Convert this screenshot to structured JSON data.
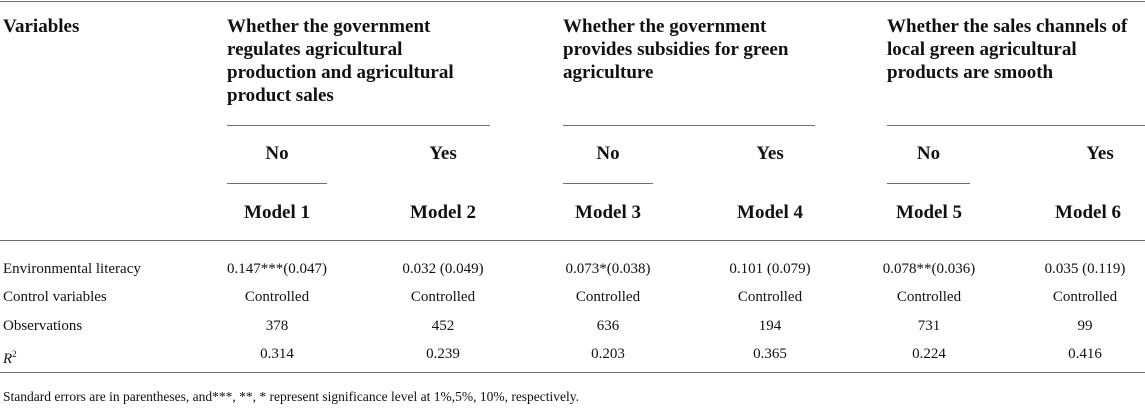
{
  "header": {
    "variables_label": "Variables",
    "groups": [
      {
        "title": "Whether the government regulates agricultural production and agricultural product sales",
        "no": "No",
        "yes": "Yes",
        "model_no": "Model 1",
        "model_yes": "Model 2"
      },
      {
        "title": "Whether the government provides subsidies for green agriculture",
        "no": "No",
        "yes": "Yes",
        "model_no": "Model 3",
        "model_yes": "Model 4"
      },
      {
        "title": "Whether the sales channels of local green agricultural products are smooth",
        "no": "No",
        "yes": "Yes",
        "model_no": "Model 5",
        "model_yes": "Model 6"
      }
    ]
  },
  "rows": [
    {
      "label": "Environmental literacy",
      "values": [
        "0.147***(0.047)",
        "0.032 (0.049)",
        "0.073*(0.038)",
        "0.101 (0.079)",
        "0.078**(0.036)",
        "0.035 (0.119)"
      ]
    },
    {
      "label": "Control variables",
      "values": [
        "Controlled",
        "Controlled",
        "Controlled",
        "Controlled",
        "Controlled",
        "Controlled"
      ]
    },
    {
      "label": "Observations",
      "values": [
        "378",
        "452",
        "636",
        "194",
        "731",
        "99"
      ]
    },
    {
      "label_main": "R",
      "label_sup": "2",
      "values": [
        "0.314",
        "0.239",
        "0.203",
        "0.365",
        "0.224",
        "0.416"
      ]
    }
  ],
  "footnote": "Standard errors are in parentheses, and***, **, * represent significance level at 1%,5%, 10%, respectively."
}
